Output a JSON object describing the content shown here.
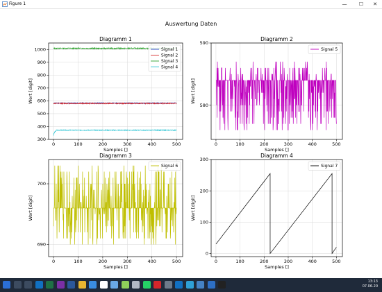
{
  "window": {
    "title": "Figure 1",
    "min": "—",
    "max": "☐",
    "close": "✕"
  },
  "figure": {
    "suptitle": "Auswertung Daten"
  },
  "chart_data": [
    {
      "type": "line",
      "title": "Diagramm 1",
      "xlabel": "Samples []",
      "ylabel": "Wert [digit]",
      "xlim": [
        -20,
        525
      ],
      "ylim": [
        300,
        1050
      ],
      "xticks": [
        0,
        100,
        200,
        300,
        400,
        500
      ],
      "yticks": [
        300,
        400,
        500,
        600,
        700,
        800,
        900,
        1000
      ],
      "grid": true,
      "legend": "top-right",
      "series": [
        {
          "name": "Signal 1",
          "color": "#1f3fbf",
          "pattern": "noise",
          "base": 582,
          "amp": 4,
          "seed": 11
        },
        {
          "name": "Signal 2",
          "color": "#d62728",
          "pattern": "noise",
          "base": 580,
          "amp": 4,
          "seed": 12
        },
        {
          "name": "Signal 3",
          "color": "#2ca02c",
          "pattern": "noise",
          "base": 1008,
          "amp": 5,
          "seed": 13
        },
        {
          "name": "Signal 4",
          "color": "#17becf",
          "pattern": "rise",
          "base": 372,
          "start": 330,
          "amp": 3,
          "seed": 14
        }
      ],
      "n": 500
    },
    {
      "type": "line",
      "title": "Diagramm 2",
      "xlabel": "Samples []",
      "ylabel": "Wert [digit]",
      "xlim": [
        -20,
        525
      ],
      "ylim": [
        574.5,
        590
      ],
      "xticks": [
        0,
        100,
        200,
        300,
        400,
        500
      ],
      "yticks": [
        580,
        590
      ],
      "grid": true,
      "legend": "top-right",
      "series": [
        {
          "name": "Signal 5",
          "color": "#bf00bf",
          "pattern": "quantized",
          "low": 576,
          "high": 587,
          "mode": 584,
          "seed": 21
        }
      ],
      "n": 500
    },
    {
      "type": "line",
      "title": "Diagramm 3",
      "xlabel": "Samples []",
      "ylabel": "Wert [digit]",
      "xlim": [
        -20,
        525
      ],
      "ylim": [
        688,
        704
      ],
      "xticks": [
        0,
        100,
        200,
        300,
        400,
        500
      ],
      "yticks": [
        690,
        700
      ],
      "grid": true,
      "legend": "top-right",
      "series": [
        {
          "name": "Signal 6",
          "color": "#bfbf00",
          "pattern": "quantized",
          "low": 690,
          "high": 703,
          "mode": 696,
          "seed": 31
        }
      ],
      "n": 500
    },
    {
      "type": "line",
      "title": "Diagramm 4",
      "xlabel": "Samples []",
      "ylabel": "Wert [digit]",
      "xlim": [
        -20,
        525
      ],
      "ylim": [
        -10,
        300
      ],
      "xticks": [
        0,
        100,
        200,
        300,
        400,
        500
      ],
      "yticks": [
        0,
        100,
        200,
        300
      ],
      "grid": true,
      "legend": "top-right",
      "series": [
        {
          "name": "Signal 7",
          "color": "#000000",
          "pattern": "sawtooth",
          "points": [
            [
              0,
              30
            ],
            [
              225,
              255
            ],
            [
              225,
              0
            ],
            [
              227,
              2
            ],
            [
              482,
              255
            ],
            [
              482,
              0
            ],
            [
              500,
              20
            ]
          ]
        }
      ]
    }
  ],
  "taskbar": {
    "icons": [
      {
        "name": "start",
        "color": "#2b6fd6"
      },
      {
        "name": "search",
        "color": "#3c4b60"
      },
      {
        "name": "task-view",
        "color": "#3c4b60"
      },
      {
        "name": "outlook",
        "color": "#1170c2"
      },
      {
        "name": "excel",
        "color": "#1e7145"
      },
      {
        "name": "onenote",
        "color": "#7b2fa5"
      },
      {
        "name": "word",
        "color": "#2b579a"
      },
      {
        "name": "explorer",
        "color": "#e8b530"
      },
      {
        "name": "app1",
        "color": "#3a8de0"
      },
      {
        "name": "app2",
        "color": "#ffffff"
      },
      {
        "name": "app3",
        "color": "#6aa8e6"
      },
      {
        "name": "app4",
        "color": "#8fcf5a"
      },
      {
        "name": "app5",
        "color": "#b0b8c4"
      },
      {
        "name": "whatsapp",
        "color": "#25d366"
      },
      {
        "name": "acrobat",
        "color": "#d4262b"
      },
      {
        "name": "app6",
        "color": "#6c7a8a"
      },
      {
        "name": "outlook2",
        "color": "#1170c2"
      },
      {
        "name": "edge",
        "color": "#2fa0d6"
      },
      {
        "name": "python",
        "color": "#4582c3"
      },
      {
        "name": "app7",
        "color": "#2d6fc4"
      },
      {
        "name": "app8",
        "color": "#222"
      }
    ],
    "time": "13:13",
    "date": "07.06.20"
  }
}
